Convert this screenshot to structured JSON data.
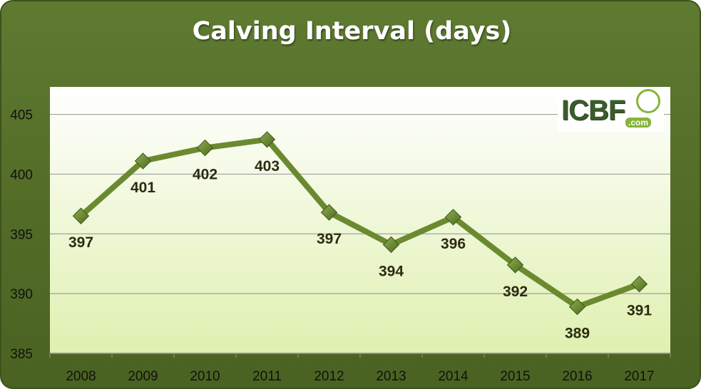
{
  "chart_data": {
    "type": "line",
    "title": "Calving Interval (days)",
    "xlabel": "",
    "ylabel": "",
    "categories": [
      "2008",
      "2009",
      "2010",
      "2011",
      "2012",
      "2013",
      "2014",
      "2015",
      "2016",
      "2017"
    ],
    "series": [
      {
        "values": [
          396.5,
          401.1,
          402.2,
          402.9,
          396.8,
          394.1,
          396.4,
          392.4,
          388.9,
          390.8
        ],
        "labels": [
          "397",
          "401",
          "402",
          "403",
          "397",
          "394",
          "396",
          "392",
          "389",
          "391"
        ],
        "color": "#6b8a30"
      }
    ],
    "ylim": [
      385,
      405
    ],
    "yticks": [
      385,
      390,
      395,
      400,
      405
    ],
    "grid": true,
    "legend": "none"
  },
  "logo": {
    "text": "ICBF",
    "sub": ".com"
  },
  "colors": {
    "frame": "#526c27",
    "plot_top": "#ffffff",
    "plot_bottom": "#dff0b0",
    "line": "#6b8a30",
    "marker": "#6b8a30"
  }
}
